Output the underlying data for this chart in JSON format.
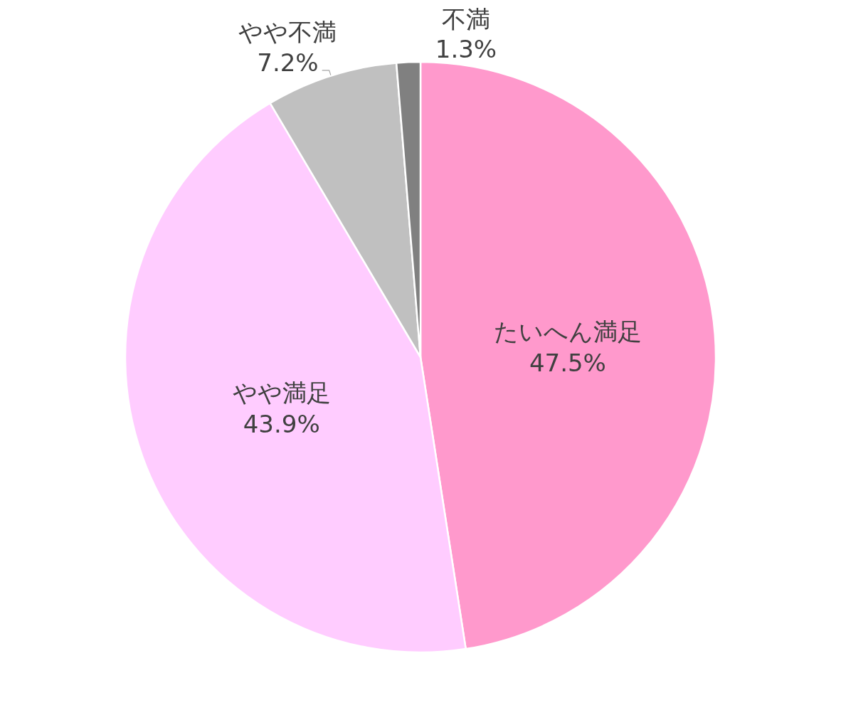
{
  "chart_data": {
    "type": "pie",
    "categories": [
      "たいへん満足",
      "やや満足",
      "やや不満",
      "不満"
    ],
    "values": [
      47.5,
      43.9,
      7.2,
      1.3
    ],
    "colors": [
      "#ff99cc",
      "#ffccff",
      "#c0c0c0",
      "#808080"
    ],
    "value_labels": [
      "47.5%",
      "43.9%",
      "7.2%",
      "1.3%"
    ]
  }
}
